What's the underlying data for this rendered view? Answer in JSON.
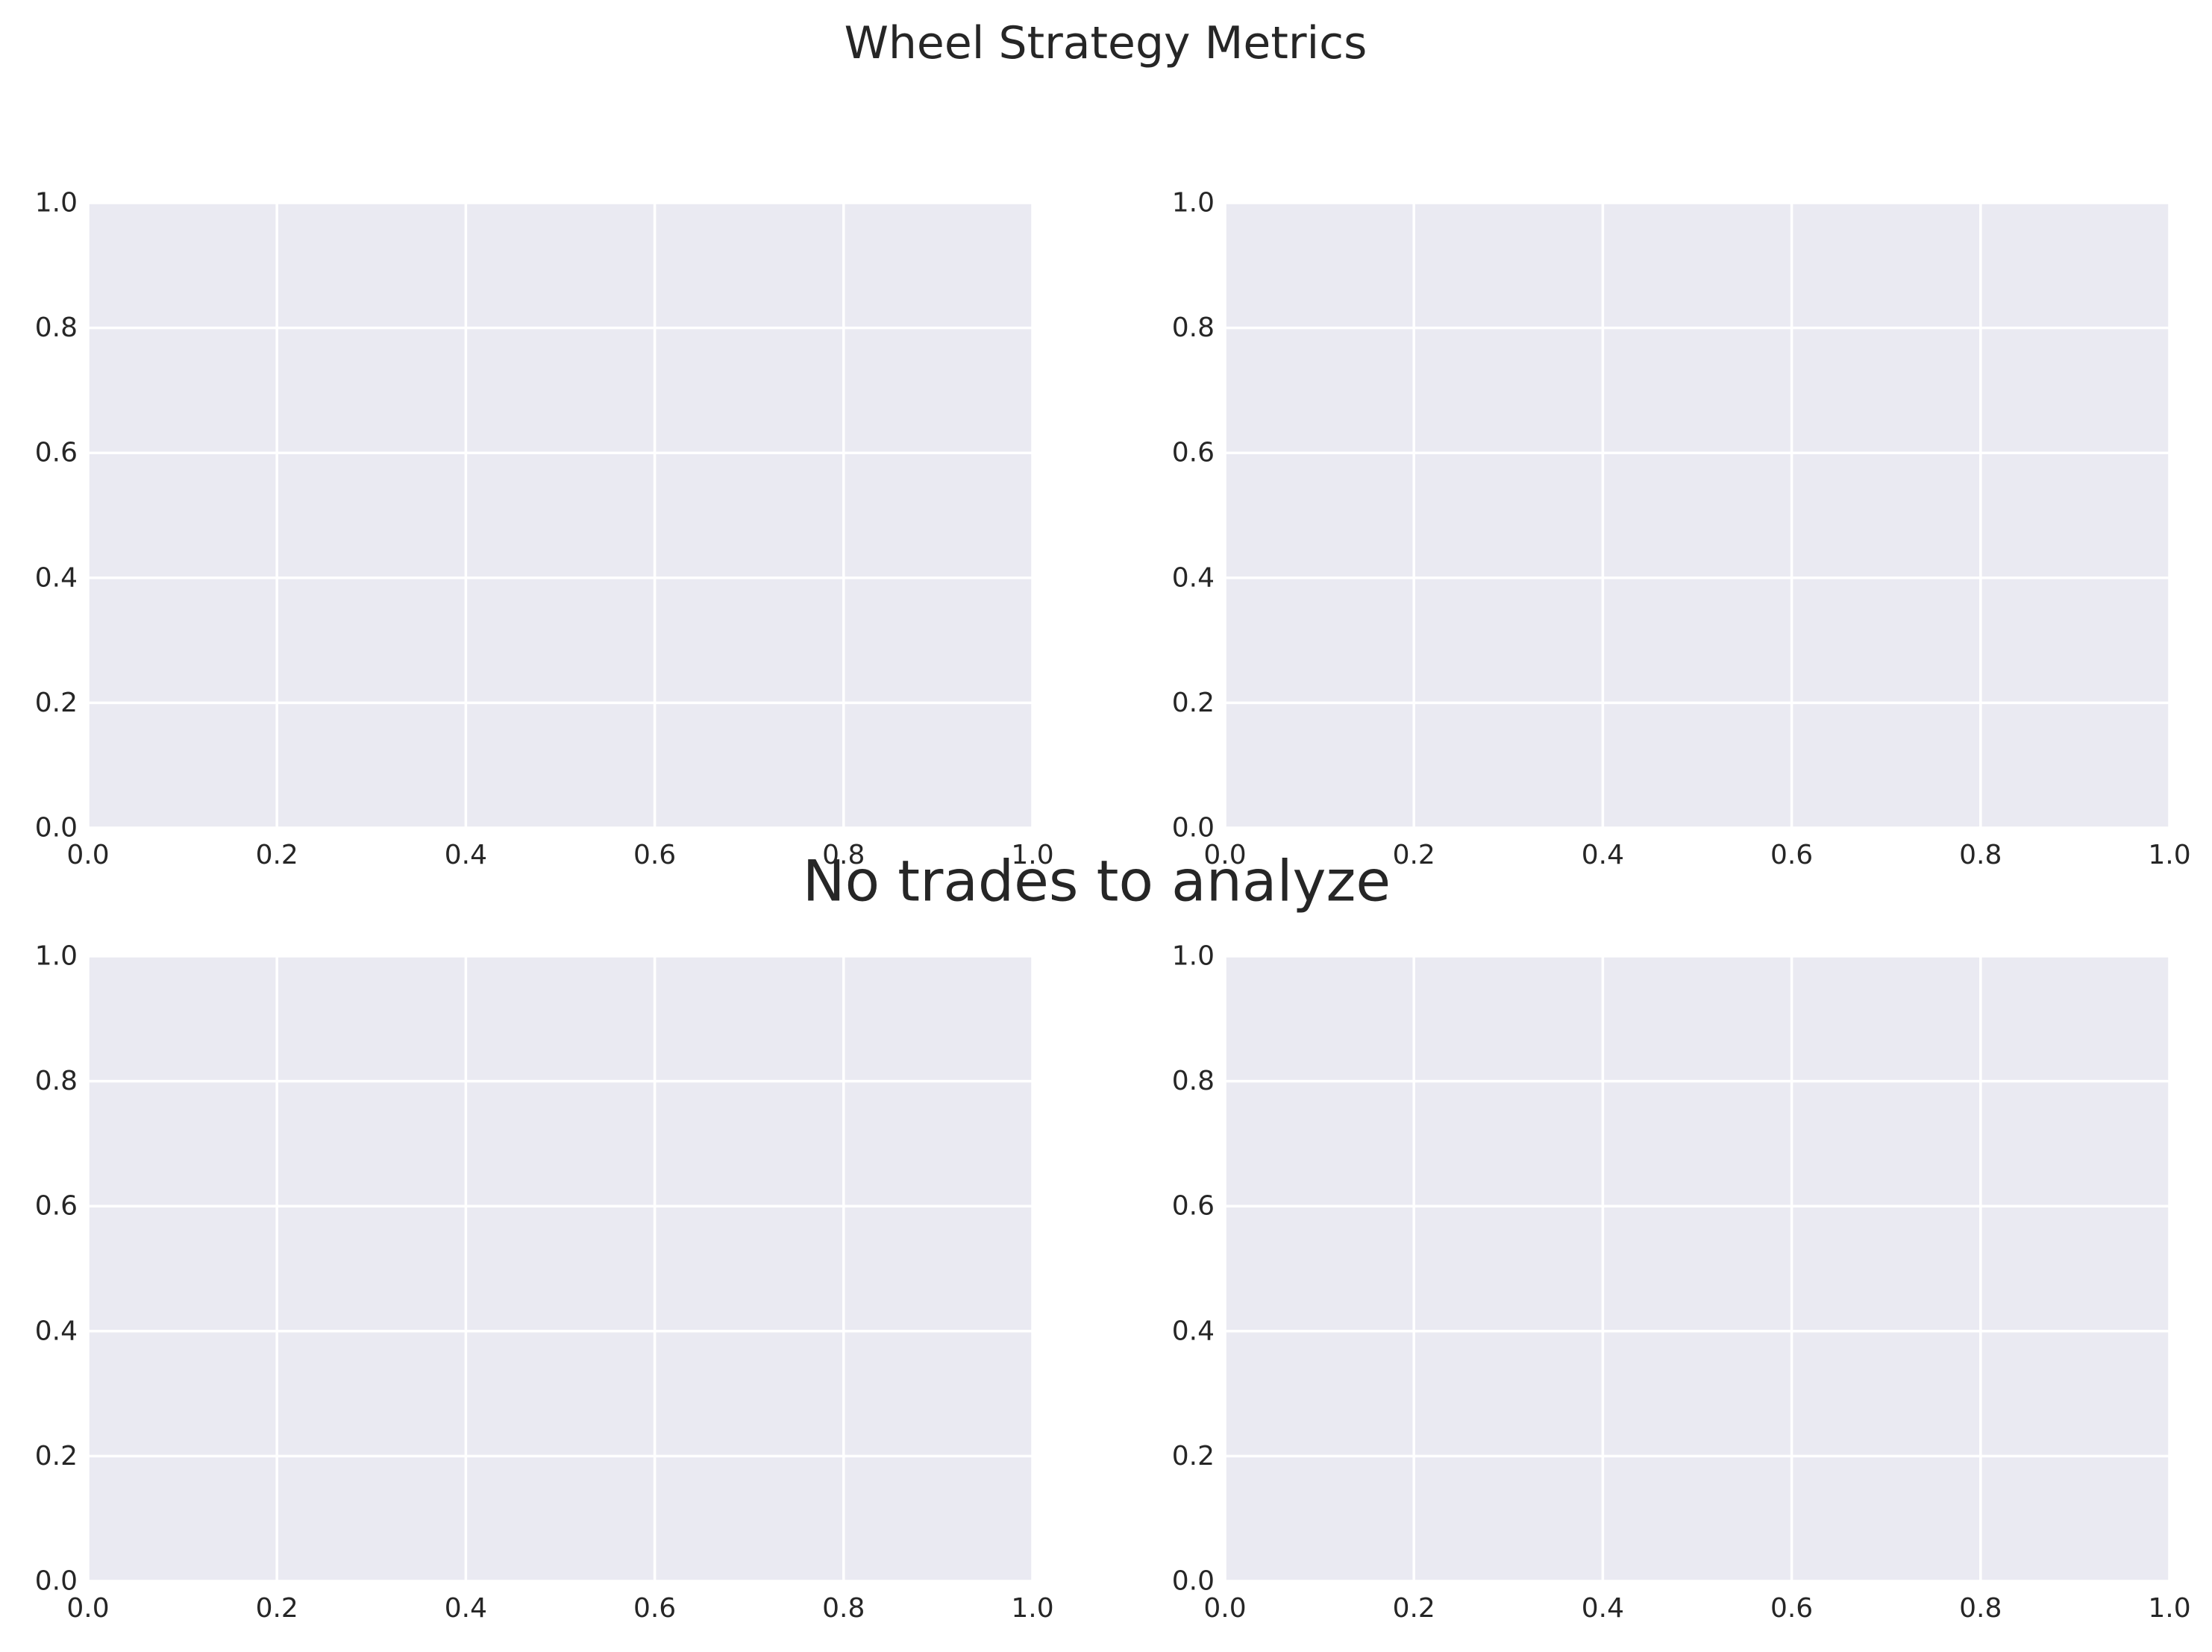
{
  "figure": {
    "suptitle": "Wheel Strategy Metrics",
    "message": "No trades to analyze"
  },
  "colors": {
    "axes_background": "#eaeaf2",
    "grid": "#ffffff",
    "text": "#262626"
  },
  "chart_data": [
    {
      "type": "line",
      "position": "top-left",
      "series": [],
      "xlim": [
        0,
        1
      ],
      "ylim": [
        0,
        1
      ],
      "xticks": [
        "0.0",
        "0.2",
        "0.4",
        "0.6",
        "0.8",
        "1.0"
      ],
      "yticks": [
        "0.0",
        "0.2",
        "0.4",
        "0.6",
        "0.8",
        "1.0"
      ],
      "grid": true
    },
    {
      "type": "line",
      "position": "top-right",
      "series": [],
      "xlim": [
        0,
        1
      ],
      "ylim": [
        0,
        1
      ],
      "xticks": [
        "0.0",
        "0.2",
        "0.4",
        "0.6",
        "0.8",
        "1.0"
      ],
      "yticks": [
        "0.0",
        "0.2",
        "0.4",
        "0.6",
        "0.8",
        "1.0"
      ],
      "grid": true
    },
    {
      "type": "line",
      "position": "bottom-left",
      "series": [],
      "xlim": [
        0,
        1
      ],
      "ylim": [
        0,
        1
      ],
      "xticks": [
        "0.0",
        "0.2",
        "0.4",
        "0.6",
        "0.8",
        "1.0"
      ],
      "yticks": [
        "0.0",
        "0.2",
        "0.4",
        "0.6",
        "0.8",
        "1.0"
      ],
      "grid": true
    },
    {
      "type": "line",
      "position": "bottom-right",
      "series": [],
      "xlim": [
        0,
        1
      ],
      "ylim": [
        0,
        1
      ],
      "xticks": [
        "0.0",
        "0.2",
        "0.4",
        "0.6",
        "0.8",
        "1.0"
      ],
      "yticks": [
        "0.0",
        "0.2",
        "0.4",
        "0.6",
        "0.8",
        "1.0"
      ],
      "grid": true
    }
  ]
}
